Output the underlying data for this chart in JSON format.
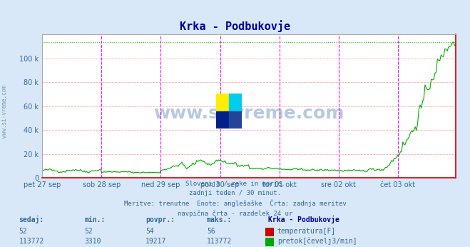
{
  "title": "Krka - Podbukovje",
  "bg_color": "#d8e8f8",
  "plot_bg_color": "#ffffff",
  "x_labels": [
    "pet 27 sep",
    "sob 28 sep",
    "ned 29 sep",
    "pon 30 sep",
    "tor 01 okt",
    "sre 02 okt",
    "čet 03 okt"
  ],
  "y_max": 120000,
  "y_ticks": [
    0,
    20000,
    40000,
    60000,
    80000,
    100000
  ],
  "y_tick_labels": [
    "0",
    "20 k",
    "40 k",
    "60 k",
    "80 k",
    "100 k"
  ],
  "grid_color_h": "#ffaaaa",
  "grid_color_v": "#aaaaaa",
  "dashed_vline_color": "#ff00ff",
  "dashed_vline_color2": "#aaaaaa",
  "flow_line_color": "#00aa00",
  "temp_line_color": "#cc0000",
  "max_line_color": "#00cc00",
  "max_line_style": "dotted",
  "x_axis_color": "#cc0000",
  "subtitle_lines": [
    "Slovenija / reke in morje.",
    "zadnji teden / 30 minut.",
    "Meritve: trenutne  Enote: anglešaške  Črta: zadnja meritev",
    "navpična črta - razdelek 24 ur"
  ],
  "table_headers": [
    "sedaj:",
    "min.:",
    "povpr.:",
    "maks.:",
    "Krka - Podbukovje"
  ],
  "table_row1": [
    "52",
    "52",
    "54",
    "56",
    "temperatura[F]"
  ],
  "table_row2": [
    "113772",
    "3310",
    "19217",
    "113772",
    "pretok[čevelj3/min]"
  ],
  "temp_color_box": "#cc0000",
  "flow_color_box": "#00aa00",
  "n_points": 336,
  "days": 7,
  "points_per_day": 48
}
